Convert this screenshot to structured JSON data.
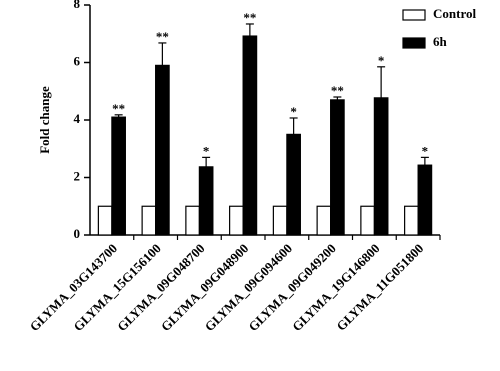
{
  "chart_data": {
    "type": "bar",
    "y_label": "Fold change",
    "categories": [
      "GLYMA_03G143700",
      "GLYMA_15G156100",
      "GLYMA_09G048700",
      "GLYMA_09G048900",
      "GLYMA_09G094600",
      "GLYMA_09G049200",
      "GLYMA_19G146800",
      "GLYMA_11G051800"
    ],
    "series": [
      {
        "name": "Control",
        "color": "#ffffff",
        "values": [
          1,
          1,
          1,
          1,
          1,
          1,
          1,
          1
        ]
      },
      {
        "name": "6h",
        "color": "#000000",
        "values": [
          4.1,
          5.9,
          2.37,
          6.92,
          3.5,
          4.7,
          4.77,
          2.43
        ],
        "errors": [
          0.08,
          0.78,
          0.33,
          0.42,
          0.57,
          0.1,
          1.08,
          0.27
        ],
        "significance": [
          "**",
          "**",
          "*",
          "**",
          "*",
          "**",
          "*",
          "*"
        ]
      }
    ],
    "ylim": [
      0,
      8
    ],
    "yticks": [
      0,
      2,
      4,
      6,
      8
    ],
    "legend": "top-right"
  }
}
